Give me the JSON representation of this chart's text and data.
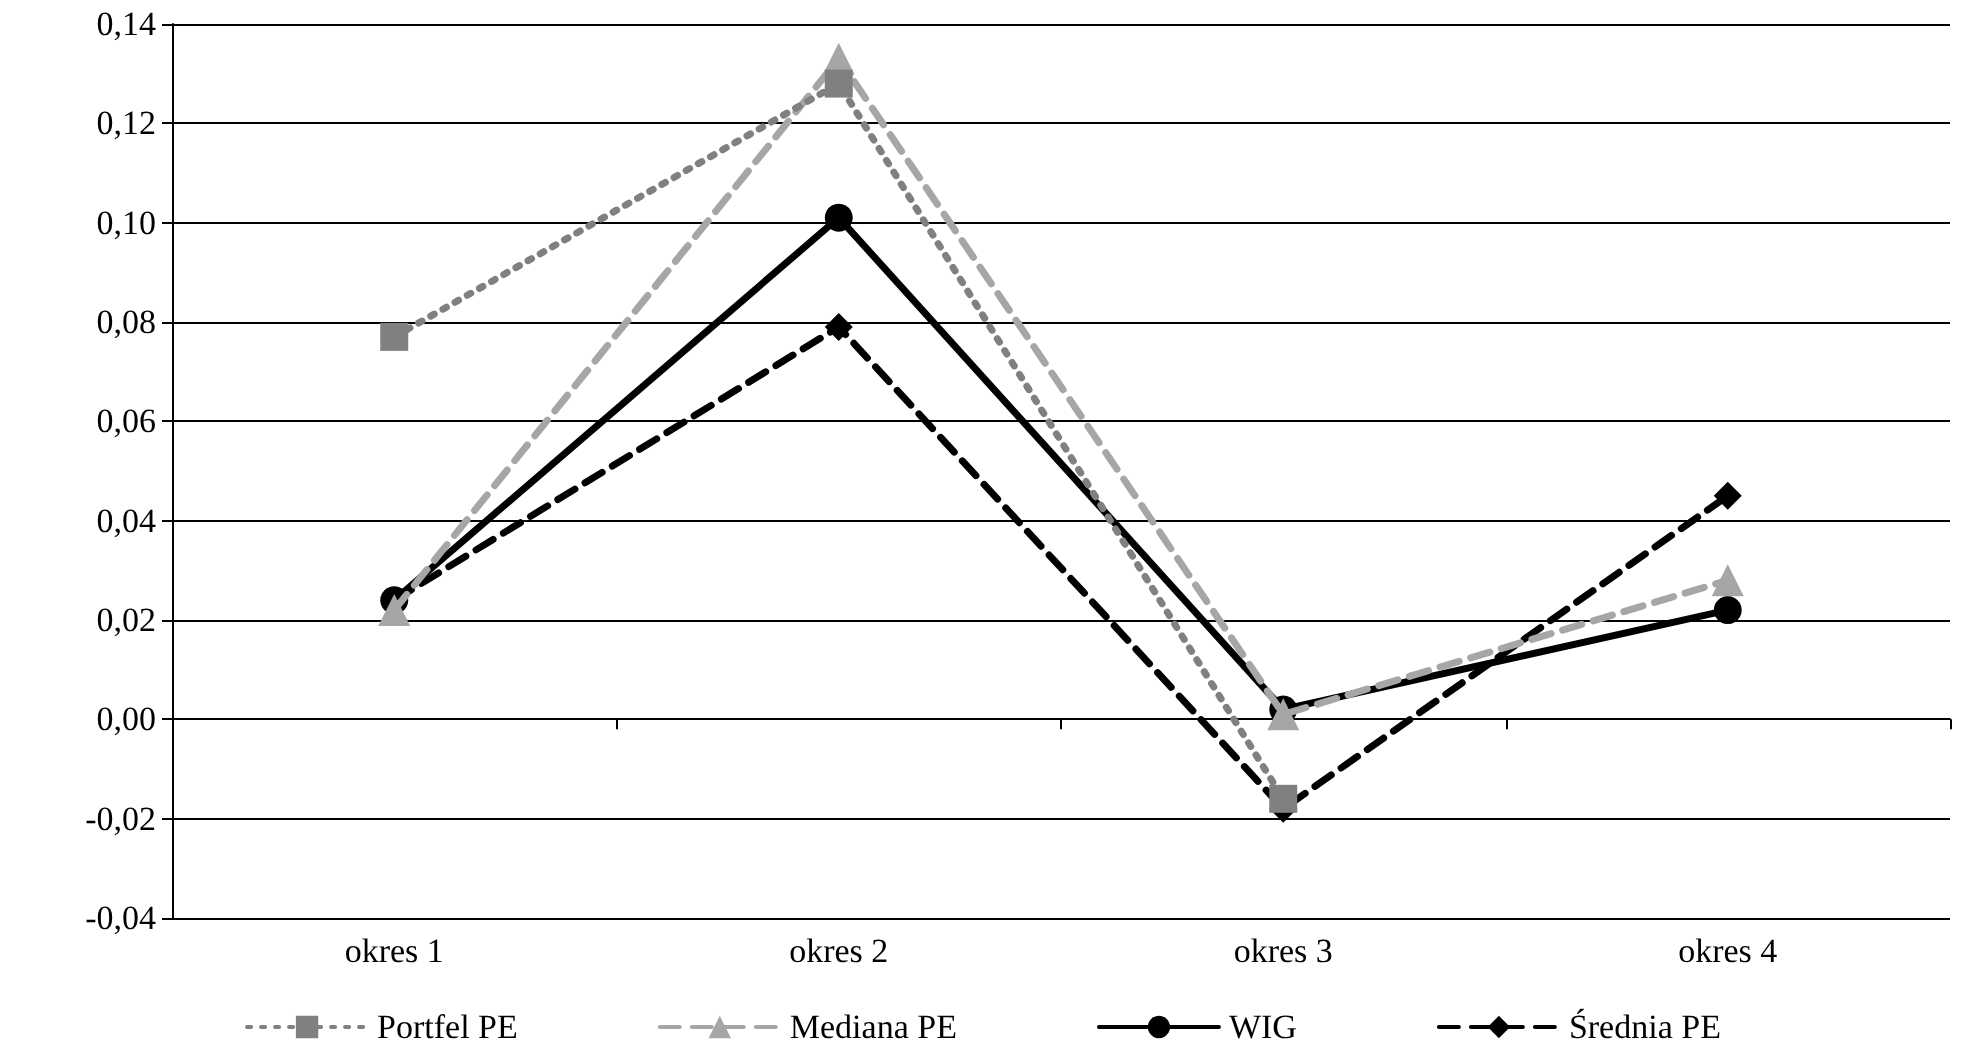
{
  "chart_data": {
    "type": "line",
    "categories": [
      "okres 1",
      "okres 2",
      "okres 3",
      "okres 4"
    ],
    "series": [
      {
        "name": "Portfel PE",
        "color": "#808080",
        "marker": "square",
        "line_style": "dotted",
        "values": [
          0.077,
          0.128,
          -0.016,
          null
        ]
      },
      {
        "name": "Mediana PE",
        "color": "#a6a6a6",
        "marker": "triangle",
        "line_style": "dashed",
        "values": [
          0.022,
          0.133,
          0.001,
          0.028
        ]
      },
      {
        "name": "WIG",
        "color": "#000000",
        "marker": "circle",
        "line_style": "solid",
        "values": [
          0.024,
          0.101,
          0.002,
          0.022
        ]
      },
      {
        "name": "Średnia PE",
        "color": "#000000",
        "marker": "diamond",
        "line_style": "dashed",
        "values": [
          0.024,
          0.079,
          -0.018,
          0.045
        ]
      }
    ],
    "ylim": [
      -0.04,
      0.14
    ],
    "yticks": [
      {
        "value": -0.04,
        "label": "-0,04"
      },
      {
        "value": -0.02,
        "label": "-0,02"
      },
      {
        "value": 0,
        "label": "0,00"
      },
      {
        "value": 0.02,
        "label": "0,02"
      },
      {
        "value": 0.04,
        "label": "0,04"
      },
      {
        "value": 0.06,
        "label": "0,06"
      },
      {
        "value": 0.08,
        "label": "0,08"
      },
      {
        "value": 0.1,
        "label": "0,10"
      },
      {
        "value": 0.12,
        "label": "0,12"
      },
      {
        "value": 0.14,
        "label": "0,14"
      }
    ],
    "grid": "y",
    "legend": "bottom"
  }
}
